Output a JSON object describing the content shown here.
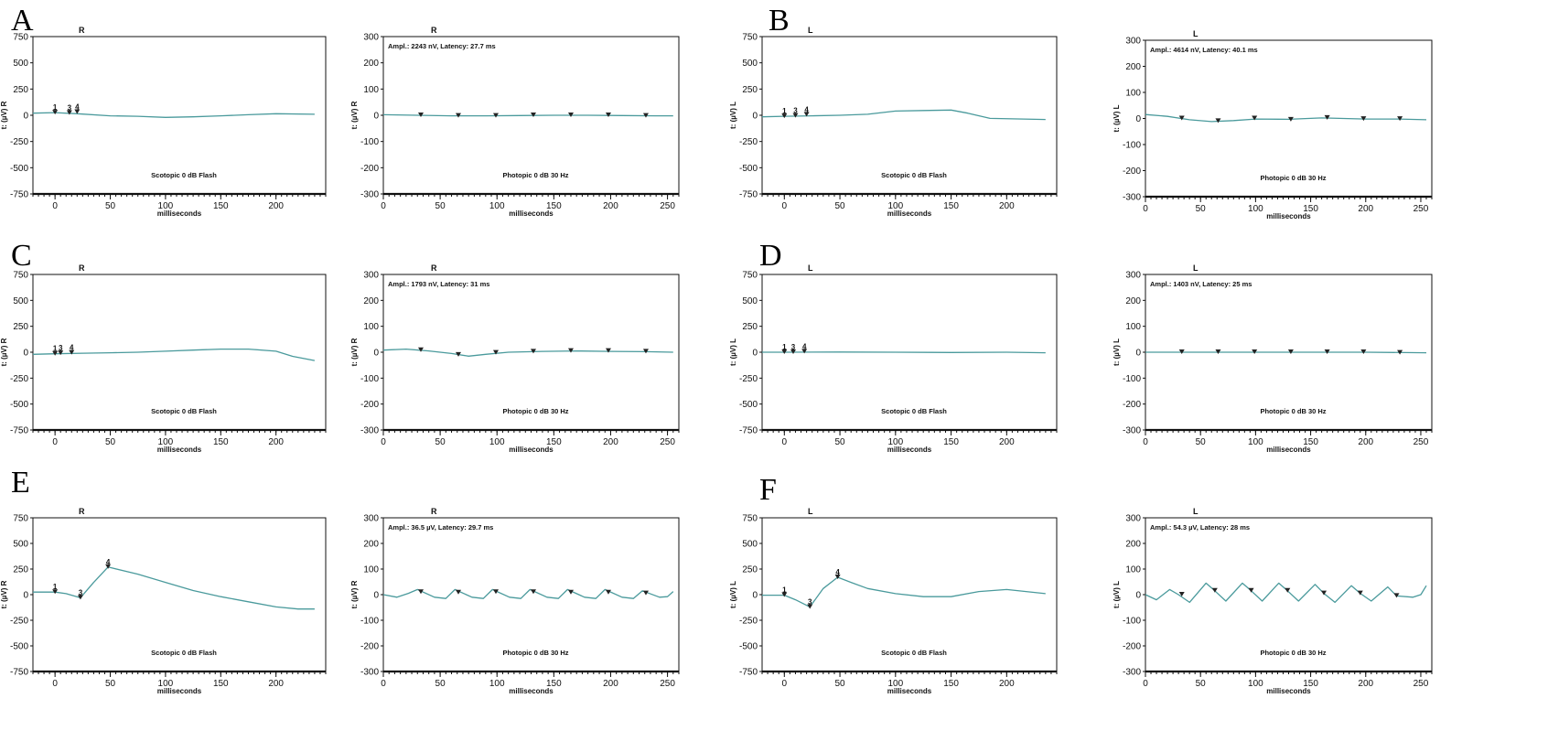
{
  "panel_letters": [
    "A",
    "B",
    "C",
    "D",
    "E",
    "F"
  ],
  "colors": {
    "trace": "#4a9a9c",
    "axis": "#111111",
    "marker": "#222222"
  },
  "chart_data": [
    {
      "id": "A-scotopic",
      "panel": "A",
      "type": "line",
      "eye": "R",
      "ylabel": "t: (µV) R",
      "xlabel": "milliseconds",
      "condition": "Scotopic   0 dB Flash",
      "annotation": "",
      "xlim": [
        -20,
        245
      ],
      "ylim": [
        -750,
        750
      ],
      "xticks": [
        0,
        50,
        100,
        150,
        200
      ],
      "yticks": [
        750,
        500,
        250,
        0,
        -250,
        -500,
        -750
      ],
      "markers": [
        {
          "label": "1",
          "x": 0,
          "y": 25
        },
        {
          "label": "3",
          "x": 13,
          "y": 22
        },
        {
          "label": "4",
          "x": 20,
          "y": 30
        }
      ],
      "series": [
        {
          "x": [
            -20,
            0,
            20,
            50,
            75,
            100,
            125,
            150,
            175,
            200,
            235
          ],
          "y": [
            20,
            25,
            15,
            -5,
            -10,
            -20,
            -15,
            -5,
            5,
            15,
            10
          ]
        }
      ]
    },
    {
      "id": "A-photopic",
      "panel": "A",
      "type": "line",
      "eye": "R",
      "ylabel": "t: (µV) R",
      "xlabel": "milliseconds",
      "condition": "Photopic   0 dB 30 Hz",
      "annotation": "Ampl.: 2243 nV, Latency: 27.7 ms",
      "xlim": [
        0,
        260
      ],
      "ylim": [
        -300,
        300
      ],
      "xticks": [
        0,
        50,
        100,
        150,
        200,
        250
      ],
      "yticks": [
        300,
        200,
        100,
        0,
        -100,
        -200,
        -300
      ],
      "markers": [
        {
          "label": "",
          "x": 33,
          "y": 0
        },
        {
          "label": "",
          "x": 66,
          "y": -2
        },
        {
          "label": "",
          "x": 99,
          "y": -2
        },
        {
          "label": "",
          "x": 132,
          "y": 0
        },
        {
          "label": "",
          "x": 165,
          "y": 0
        },
        {
          "label": "",
          "x": 198,
          "y": 0
        },
        {
          "label": "",
          "x": 231,
          "y": -2
        }
      ],
      "series": [
        {
          "x": [
            0,
            30,
            60,
            90,
            120,
            150,
            180,
            210,
            240,
            255
          ],
          "y": [
            2,
            0,
            -2,
            -2,
            -1,
            0,
            0,
            -1,
            -2,
            -2
          ]
        }
      ]
    },
    {
      "id": "B-scotopic",
      "panel": "B",
      "type": "line",
      "eye": "L",
      "ylabel": "t: (µV) L",
      "xlabel": "milliseconds",
      "condition": "Scotopic   0 dB Flash",
      "annotation": "",
      "xlim": [
        -20,
        245
      ],
      "ylim": [
        -750,
        750
      ],
      "xticks": [
        0,
        50,
        100,
        150,
        200
      ],
      "yticks": [
        750,
        500,
        250,
        0,
        -250,
        -500,
        -750
      ],
      "markers": [
        {
          "label": "1",
          "x": 0,
          "y": -10
        },
        {
          "label": "3",
          "x": 10,
          "y": -5
        },
        {
          "label": "4",
          "x": 20,
          "y": 5
        }
      ],
      "series": [
        {
          "x": [
            -20,
            0,
            25,
            50,
            75,
            100,
            125,
            150,
            165,
            185,
            210,
            235
          ],
          "y": [
            -15,
            -10,
            -5,
            0,
            10,
            40,
            45,
            50,
            20,
            -30,
            -35,
            -40
          ]
        }
      ]
    },
    {
      "id": "B-photopic",
      "panel": "B",
      "type": "line",
      "eye": "L",
      "ylabel": "t: (µV) L",
      "xlabel": "milliseconds",
      "condition": "Photopic   0 dB 30 Hz",
      "annotation": "Ampl.: 4614 nV, Latency: 40.1 ms",
      "xlim": [
        0,
        260
      ],
      "ylim": [
        -300,
        300
      ],
      "xticks": [
        0,
        50,
        100,
        150,
        200,
        250
      ],
      "yticks": [
        300,
        200,
        100,
        0,
        -100,
        -200,
        -300
      ],
      "markers": [
        {
          "label": "",
          "x": 33,
          "y": 0
        },
        {
          "label": "",
          "x": 66,
          "y": -10
        },
        {
          "label": "",
          "x": 99,
          "y": 0
        },
        {
          "label": "",
          "x": 132,
          "y": -5
        },
        {
          "label": "",
          "x": 165,
          "y": 2
        },
        {
          "label": "",
          "x": 198,
          "y": -2
        },
        {
          "label": "",
          "x": 231,
          "y": -2
        }
      ],
      "series": [
        {
          "x": [
            0,
            20,
            40,
            60,
            80,
            100,
            130,
            160,
            200,
            230,
            255
          ],
          "y": [
            15,
            8,
            -5,
            -12,
            -8,
            -2,
            -3,
            2,
            -2,
            -2,
            -5
          ]
        }
      ]
    },
    {
      "id": "C-scotopic",
      "panel": "C",
      "type": "line",
      "eye": "R",
      "ylabel": "t: (µV) R",
      "xlabel": "milliseconds",
      "condition": "Scotopic   0 dB Flash",
      "annotation": "",
      "xlim": [
        -20,
        245
      ],
      "ylim": [
        -750,
        750
      ],
      "xticks": [
        0,
        50,
        100,
        150,
        200
      ],
      "yticks": [
        750,
        500,
        250,
        0,
        -250,
        -500,
        -750
      ],
      "markers": [
        {
          "label": "1",
          "x": 0,
          "y": -15
        },
        {
          "label": "3",
          "x": 5,
          "y": -10
        },
        {
          "label": "4",
          "x": 15,
          "y": -5
        }
      ],
      "series": [
        {
          "x": [
            -20,
            0,
            25,
            50,
            75,
            100,
            125,
            150,
            175,
            200,
            215,
            235
          ],
          "y": [
            -20,
            -15,
            -10,
            -5,
            0,
            10,
            20,
            30,
            30,
            10,
            -40,
            -80
          ]
        }
      ]
    },
    {
      "id": "C-photopic",
      "panel": "C",
      "type": "line",
      "eye": "R",
      "ylabel": "t: (µV) R",
      "xlabel": "milliseconds",
      "condition": "Photopic   0 dB 30 Hz",
      "annotation": "Ampl.: 1793 nV, Latency: 31 ms",
      "xlim": [
        0,
        260
      ],
      "ylim": [
        -300,
        300
      ],
      "xticks": [
        0,
        50,
        100,
        150,
        200,
        250
      ],
      "yticks": [
        300,
        200,
        100,
        0,
        -100,
        -200,
        -300
      ],
      "markers": [
        {
          "label": "",
          "x": 33,
          "y": 8
        },
        {
          "label": "",
          "x": 66,
          "y": -10
        },
        {
          "label": "",
          "x": 99,
          "y": -2
        },
        {
          "label": "",
          "x": 132,
          "y": 2
        },
        {
          "label": "",
          "x": 165,
          "y": 5
        },
        {
          "label": "",
          "x": 198,
          "y": 5
        },
        {
          "label": "",
          "x": 231,
          "y": 2
        }
      ],
      "series": [
        {
          "x": [
            0,
            20,
            40,
            60,
            75,
            90,
            110,
            140,
            170,
            200,
            230,
            255
          ],
          "y": [
            8,
            12,
            5,
            -5,
            -15,
            -8,
            0,
            3,
            5,
            3,
            2,
            0
          ]
        }
      ]
    },
    {
      "id": "D-scotopic",
      "panel": "D",
      "type": "line",
      "eye": "L",
      "ylabel": "t: (µV) L",
      "xlabel": "milliseconds",
      "condition": "Scotopic   0 dB Flash",
      "annotation": "",
      "xlim": [
        -20,
        245
      ],
      "ylim": [
        -750,
        750
      ],
      "xticks": [
        0,
        50,
        100,
        150,
        200
      ],
      "yticks": [
        750,
        500,
        250,
        0,
        -250,
        -500,
        -750
      ],
      "markers": [
        {
          "label": "1",
          "x": 0,
          "y": 0
        },
        {
          "label": "3",
          "x": 8,
          "y": 0
        },
        {
          "label": "4",
          "x": 18,
          "y": 5
        }
      ],
      "series": [
        {
          "x": [
            -20,
            0,
            50,
            100,
            150,
            200,
            235
          ],
          "y": [
            0,
            0,
            2,
            0,
            -3,
            0,
            -5
          ]
        }
      ]
    },
    {
      "id": "D-photopic",
      "panel": "D",
      "type": "line",
      "eye": "L",
      "ylabel": "t: (µV) L",
      "xlabel": "milliseconds",
      "condition": "Photopic   0 dB 30 Hz",
      "annotation": "Ampl.: 1403 nV, Latency: 25 ms",
      "xlim": [
        0,
        260
      ],
      "ylim": [
        -300,
        300
      ],
      "xticks": [
        0,
        50,
        100,
        150,
        200,
        250
      ],
      "yticks": [
        300,
        200,
        100,
        0,
        -100,
        -200,
        -300
      ],
      "markers": [
        {
          "label": "",
          "x": 33,
          "y": 0
        },
        {
          "label": "",
          "x": 66,
          "y": 0
        },
        {
          "label": "",
          "x": 99,
          "y": 0
        },
        {
          "label": "",
          "x": 132,
          "y": 0
        },
        {
          "label": "",
          "x": 165,
          "y": 0
        },
        {
          "label": "",
          "x": 198,
          "y": 0
        },
        {
          "label": "",
          "x": 231,
          "y": -2
        }
      ],
      "series": [
        {
          "x": [
            0,
            50,
            100,
            150,
            200,
            255
          ],
          "y": [
            0,
            0,
            0,
            0,
            0,
            -2
          ]
        }
      ]
    },
    {
      "id": "E-scotopic",
      "panel": "E",
      "type": "line",
      "eye": "R",
      "ylabel": "t: (µV) R",
      "xlabel": "milliseconds",
      "condition": "Scotopic   0 dB Flash",
      "annotation": "",
      "xlim": [
        -20,
        245
      ],
      "ylim": [
        -750,
        750
      ],
      "xticks": [
        0,
        50,
        100,
        150,
        200
      ],
      "yticks": [
        750,
        500,
        250,
        0,
        -250,
        -500,
        -750
      ],
      "markers": [
        {
          "label": "1",
          "x": 0,
          "y": 25
        },
        {
          "label": "3",
          "x": 23,
          "y": -30
        },
        {
          "label": "4",
          "x": 48,
          "y": 270
        }
      ],
      "series": [
        {
          "x": [
            -20,
            0,
            10,
            23,
            35,
            48,
            75,
            100,
            125,
            150,
            175,
            200,
            220,
            235
          ],
          "y": [
            25,
            25,
            10,
            -30,
            120,
            270,
            200,
            120,
            40,
            -20,
            -70,
            -120,
            -140,
            -140
          ]
        }
      ]
    },
    {
      "id": "E-photopic",
      "panel": "E",
      "type": "line",
      "eye": "R",
      "ylabel": "t: (µV) R",
      "xlabel": "milliseconds",
      "condition": "Photopic   0 dB 30 Hz",
      "annotation": "Ampl.: 36.5 µV, Latency: 29.7 ms",
      "xlim": [
        0,
        260
      ],
      "ylim": [
        -300,
        300
      ],
      "xticks": [
        0,
        50,
        100,
        150,
        200,
        250
      ],
      "yticks": [
        300,
        200,
        100,
        0,
        -100,
        -200,
        -300
      ],
      "markers": [
        {
          "label": "",
          "x": 33,
          "y": 10
        },
        {
          "label": "",
          "x": 66,
          "y": 8
        },
        {
          "label": "",
          "x": 99,
          "y": 10
        },
        {
          "label": "",
          "x": 132,
          "y": 10
        },
        {
          "label": "",
          "x": 165,
          "y": 8
        },
        {
          "label": "",
          "x": 198,
          "y": 8
        },
        {
          "label": "",
          "x": 231,
          "y": 5
        }
      ],
      "series": [
        {
          "x": [
            0,
            12,
            22,
            30,
            45,
            55,
            63,
            78,
            88,
            96,
            111,
            121,
            129,
            144,
            154,
            162,
            177,
            187,
            195,
            210,
            220,
            228,
            243,
            250,
            255
          ],
          "y": [
            0,
            -10,
            5,
            20,
            -10,
            -15,
            20,
            -10,
            -15,
            20,
            -10,
            -15,
            20,
            -10,
            -15,
            20,
            -10,
            -15,
            20,
            -10,
            -15,
            15,
            -10,
            -8,
            12
          ]
        }
      ]
    },
    {
      "id": "F-scotopic",
      "panel": "F",
      "type": "line",
      "eye": "L",
      "ylabel": "t: (µV) L",
      "xlabel": "milliseconds",
      "condition": "Scotopic   0 dB Flash",
      "annotation": "",
      "xlim": [
        -20,
        245
      ],
      "ylim": [
        -750,
        750
      ],
      "xticks": [
        0,
        50,
        100,
        150,
        200
      ],
      "yticks": [
        750,
        500,
        250,
        0,
        -250,
        -500,
        -750
      ],
      "markers": [
        {
          "label": "1",
          "x": 0,
          "y": -5
        },
        {
          "label": "3",
          "x": 23,
          "y": -120
        },
        {
          "label": "4",
          "x": 48,
          "y": 170
        }
      ],
      "series": [
        {
          "x": [
            -20,
            0,
            10,
            23,
            35,
            48,
            60,
            75,
            100,
            125,
            150,
            175,
            200,
            235
          ],
          "y": [
            -5,
            -5,
            -50,
            -120,
            60,
            170,
            120,
            60,
            10,
            -20,
            -20,
            30,
            50,
            10
          ]
        }
      ]
    },
    {
      "id": "F-photopic",
      "panel": "F",
      "type": "line",
      "eye": "L",
      "ylabel": "t: (µV) L",
      "xlabel": "milliseconds",
      "condition": "Photopic   0 dB 30 Hz",
      "annotation": "Ampl.: 54.3 µV, Latency: 28 ms",
      "xlim": [
        0,
        260
      ],
      "ylim": [
        -300,
        300
      ],
      "xticks": [
        0,
        50,
        100,
        150,
        200,
        250
      ],
      "yticks": [
        300,
        200,
        100,
        0,
        -100,
        -200,
        -300
      ],
      "markers": [
        {
          "label": "",
          "x": 33,
          "y": 0
        },
        {
          "label": "",
          "x": 63,
          "y": 15
        },
        {
          "label": "",
          "x": 96,
          "y": 15
        },
        {
          "label": "",
          "x": 129,
          "y": 15
        },
        {
          "label": "",
          "x": 162,
          "y": 5
        },
        {
          "label": "",
          "x": 195,
          "y": 5
        },
        {
          "label": "",
          "x": 228,
          "y": -5
        }
      ],
      "series": [
        {
          "x": [
            0,
            10,
            22,
            30,
            40,
            55,
            63,
            73,
            88,
            96,
            106,
            121,
            129,
            139,
            154,
            162,
            172,
            187,
            195,
            205,
            220,
            228,
            243,
            250,
            255
          ],
          "y": [
            0,
            -20,
            20,
            0,
            -30,
            45,
            15,
            -25,
            45,
            15,
            -25,
            45,
            15,
            -25,
            40,
            5,
            -30,
            35,
            5,
            -25,
            30,
            -5,
            -10,
            0,
            35
          ]
        }
      ]
    }
  ]
}
